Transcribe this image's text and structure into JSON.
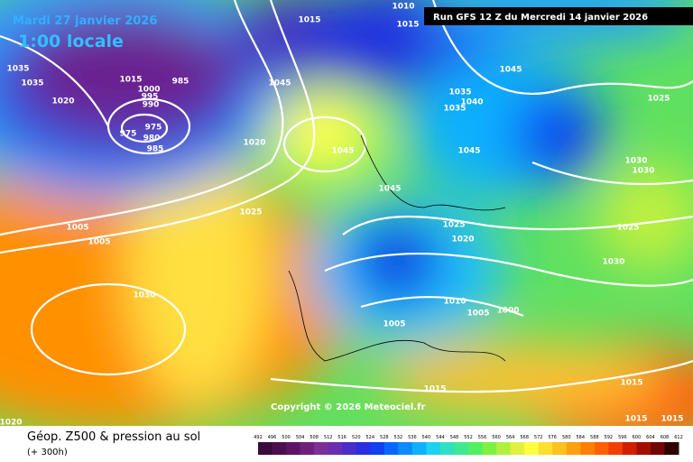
{
  "header": {
    "date": "Mardi 27 janvier 2026",
    "time": "1:00 locale",
    "run": "Run GFS 12 Z du Mercredi 14 janvier 2026"
  },
  "copyright": "Copyright © 2026 Meteociel.fr",
  "footer": {
    "title": "Géop. Z500 & pression au sol",
    "lead": "(+ 300h)"
  },
  "isobar_labels": [
    "1015",
    "1010",
    "1015",
    "1035",
    "1035",
    "1020",
    "1015",
    "1000",
    "995",
    "990",
    "985",
    "975",
    "980",
    "975",
    "985",
    "1045",
    "1020",
    "1045",
    "1045",
    "1025",
    "1005",
    "1005",
    "1030",
    "1035",
    "1035",
    "1040",
    "1045",
    "1025",
    "1045",
    "1030",
    "1030",
    "1025",
    "1020",
    "1025",
    "1030",
    "1010",
    "1005",
    "1000",
    "1005",
    "1015",
    "1015",
    "1015",
    "1015",
    "1020"
  ],
  "colorbar": {
    "labels": [
      "492",
      "496",
      "500",
      "504",
      "508",
      "512",
      "516",
      "520",
      "524",
      "528",
      "532",
      "536",
      "540",
      "544",
      "548",
      "552",
      "556",
      "560",
      "564",
      "568",
      "572",
      "576",
      "580",
      "584",
      "588",
      "592",
      "596",
      "600",
      "604",
      "608",
      "612"
    ],
    "colors": [
      "#3a0a3a",
      "#4b0f4f",
      "#5e1466",
      "#70207c",
      "#7e2f96",
      "#6a2fb0",
      "#4a2ec8",
      "#2a2ee0",
      "#1040f0",
      "#0a66ff",
      "#0a8cff",
      "#10b0ff",
      "#20d0f0",
      "#30e0c0",
      "#40e890",
      "#50f060",
      "#80f040",
      "#b0f040",
      "#e0f040",
      "#ffff40",
      "#ffe030",
      "#ffc020",
      "#ffa010",
      "#ff8000",
      "#ff6000",
      "#f04000",
      "#d02000",
      "#a01000",
      "#700800",
      "#300000"
    ]
  }
}
